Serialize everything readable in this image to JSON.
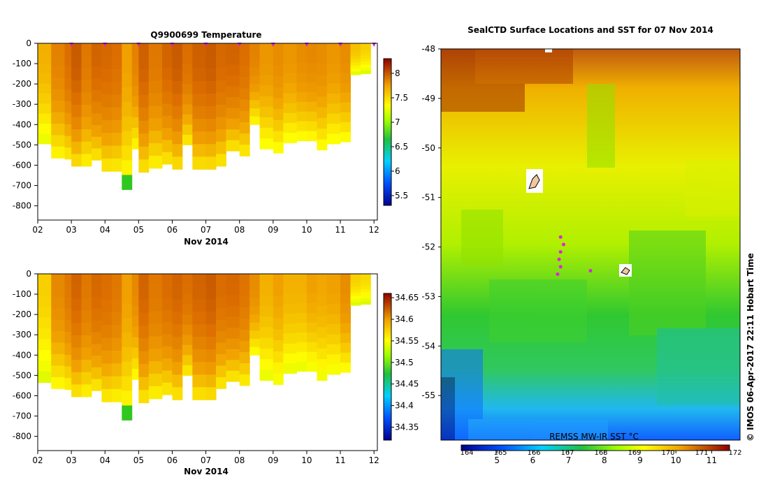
{
  "chart_data": [
    {
      "type": "heatmap",
      "title": "Q9900699  Temperature",
      "xlabel": "Nov 2014",
      "x_ticks": [
        "02",
        "03",
        "04",
        "05",
        "06",
        "07",
        "08",
        "09",
        "10",
        "11",
        "12"
      ],
      "xlim": [
        2,
        12.1
      ],
      "y_ticks": [
        "0",
        "-100",
        "-200",
        "-300",
        "-400",
        "-500",
        "-600",
        "-700",
        "-800"
      ],
      "ylim": [
        0,
        -870
      ],
      "colorbar": {
        "min": 5.3,
        "max": 8.3,
        "ticks": [
          "5.5",
          "6",
          "6.5",
          "7",
          "7.5",
          "8"
        ]
      },
      "profiles": [
        {
          "t": 2.0,
          "depth": 495,
          "warm": 0.55
        },
        {
          "t": 2.4,
          "depth": 565,
          "warm": 0.75
        },
        {
          "t": 2.8,
          "depth": 570,
          "warm": 0.85
        },
        {
          "t": 3.0,
          "depth": 605,
          "warm": 0.95
        },
        {
          "t": 3.3,
          "depth": 605,
          "warm": 0.8
        },
        {
          "t": 3.6,
          "depth": 575,
          "warm": 0.9
        },
        {
          "t": 3.9,
          "depth": 630,
          "warm": 0.88
        },
        {
          "t": 4.2,
          "depth": 630,
          "warm": 0.85
        },
        {
          "t": 4.5,
          "depth": 720,
          "warm": 0.6
        },
        {
          "t": 4.8,
          "depth": 520,
          "warm": 0.75
        },
        {
          "t": 5.0,
          "depth": 635,
          "warm": 0.92
        },
        {
          "t": 5.3,
          "depth": 615,
          "warm": 0.8
        },
        {
          "t": 5.7,
          "depth": 595,
          "warm": 0.9
        },
        {
          "t": 6.0,
          "depth": 620,
          "warm": 0.95
        },
        {
          "t": 6.3,
          "depth": 500,
          "warm": 0.85
        },
        {
          "t": 6.6,
          "depth": 620,
          "warm": 0.92
        },
        {
          "t": 7.0,
          "depth": 620,
          "warm": 0.95
        },
        {
          "t": 7.3,
          "depth": 605,
          "warm": 0.88
        },
        {
          "t": 7.6,
          "depth": 530,
          "warm": 0.9
        },
        {
          "t": 8.0,
          "depth": 555,
          "warm": 0.85
        },
        {
          "t": 8.3,
          "depth": 400,
          "warm": 0.75
        },
        {
          "t": 8.6,
          "depth": 520,
          "warm": 0.65
        },
        {
          "t": 9.0,
          "depth": 540,
          "warm": 0.7
        },
        {
          "t": 9.3,
          "depth": 490,
          "warm": 0.65
        },
        {
          "t": 9.7,
          "depth": 480,
          "warm": 0.7
        },
        {
          "t": 10.0,
          "depth": 480,
          "warm": 0.72
        },
        {
          "t": 10.3,
          "depth": 525,
          "warm": 0.7
        },
        {
          "t": 10.6,
          "depth": 495,
          "warm": 0.65
        },
        {
          "t": 11.0,
          "depth": 485,
          "warm": 0.7
        },
        {
          "t": 11.3,
          "depth": 155,
          "warm": 0.5
        },
        {
          "t": 11.6,
          "depth": 150,
          "warm": 0.45
        }
      ],
      "surface_markers": [
        3,
        4,
        5,
        6,
        7,
        8,
        9,
        10,
        11,
        12
      ]
    },
    {
      "type": "heatmap",
      "title": "",
      "xlabel": "Nov 2014",
      "x_ticks": [
        "02",
        "03",
        "04",
        "05",
        "06",
        "07",
        "08",
        "09",
        "10",
        "11",
        "12"
      ],
      "xlim": [
        2,
        12.1
      ],
      "y_ticks": [
        "0",
        "-100",
        "-200",
        "-300",
        "-400",
        "-500",
        "-600",
        "-700",
        "-800"
      ],
      "ylim": [
        0,
        -870
      ],
      "colorbar": {
        "min": 34.32,
        "max": 34.66,
        "ticks": [
          "34.35",
          "34.4",
          "34.45",
          "34.5",
          "34.55",
          "34.6",
          "34.65"
        ]
      },
      "profiles": [
        {
          "t": 2.0,
          "depth": 535,
          "warm": 0.45
        },
        {
          "t": 2.4,
          "depth": 565,
          "warm": 0.72
        },
        {
          "t": 2.8,
          "depth": 570,
          "warm": 0.8
        },
        {
          "t": 3.0,
          "depth": 605,
          "warm": 0.9
        },
        {
          "t": 3.3,
          "depth": 605,
          "warm": 0.8
        },
        {
          "t": 3.6,
          "depth": 575,
          "warm": 0.88
        },
        {
          "t": 3.9,
          "depth": 630,
          "warm": 0.85
        },
        {
          "t": 4.2,
          "depth": 630,
          "warm": 0.8
        },
        {
          "t": 4.5,
          "depth": 720,
          "warm": 0.6
        },
        {
          "t": 4.8,
          "depth": 520,
          "warm": 0.72
        },
        {
          "t": 5.0,
          "depth": 635,
          "warm": 0.9
        },
        {
          "t": 5.3,
          "depth": 615,
          "warm": 0.8
        },
        {
          "t": 5.7,
          "depth": 595,
          "warm": 0.86
        },
        {
          "t": 6.0,
          "depth": 620,
          "warm": 0.9
        },
        {
          "t": 6.3,
          "depth": 500,
          "warm": 0.85
        },
        {
          "t": 6.6,
          "depth": 620,
          "warm": 0.9
        },
        {
          "t": 7.0,
          "depth": 620,
          "warm": 0.94
        },
        {
          "t": 7.3,
          "depth": 565,
          "warm": 0.86
        },
        {
          "t": 7.6,
          "depth": 530,
          "warm": 0.88
        },
        {
          "t": 8.0,
          "depth": 550,
          "warm": 0.82
        },
        {
          "t": 8.3,
          "depth": 400,
          "warm": 0.7
        },
        {
          "t": 8.6,
          "depth": 525,
          "warm": 0.55
        },
        {
          "t": 9.0,
          "depth": 545,
          "warm": 0.6
        },
        {
          "t": 9.3,
          "depth": 490,
          "warm": 0.55
        },
        {
          "t": 9.7,
          "depth": 480,
          "warm": 0.55
        },
        {
          "t": 10.0,
          "depth": 480,
          "warm": 0.6
        },
        {
          "t": 10.3,
          "depth": 525,
          "warm": 0.58
        },
        {
          "t": 10.6,
          "depth": 495,
          "warm": 0.6
        },
        {
          "t": 11.0,
          "depth": 485,
          "warm": 0.7
        },
        {
          "t": 11.3,
          "depth": 155,
          "warm": 0.45
        },
        {
          "t": 11.6,
          "depth": 150,
          "warm": 0.42
        }
      ]
    },
    {
      "type": "heatmap",
      "title": "SealCTD Surface Locations and SST for 07 Nov 2014",
      "y_ticks": [
        "-48",
        "-49",
        "-50",
        "-51",
        "-52",
        "-53",
        "-54",
        "-55"
      ],
      "ylim": [
        -48,
        -55.9
      ],
      "colorbar": {
        "label": "REMSS MW-IR SST °C",
        "top_ticks": [
          "164",
          "165",
          "166",
          "167",
          "168",
          "169",
          "170",
          "171",
          "172"
        ],
        "bottom_ticks": [
          "5",
          "6",
          "7",
          "8",
          "9",
          "10",
          "11"
        ],
        "min": 4,
        "max": 11.5
      },
      "side_label": "© IMOS 06-Apr-2017 22:11 Hobart Time",
      "seal_track": [
        {
          "lat": -51.8,
          "lon_frac": 0.4
        },
        {
          "lat": -51.95,
          "lon_frac": 0.41
        },
        {
          "lat": -52.1,
          "lon_frac": 0.4
        },
        {
          "lat": -52.25,
          "lon_frac": 0.395
        },
        {
          "lat": -52.4,
          "lon_frac": 0.4
        },
        {
          "lat": -52.55,
          "lon_frac": 0.39
        },
        {
          "lat": -52.48,
          "lon_frac": 0.5
        }
      ]
    }
  ]
}
